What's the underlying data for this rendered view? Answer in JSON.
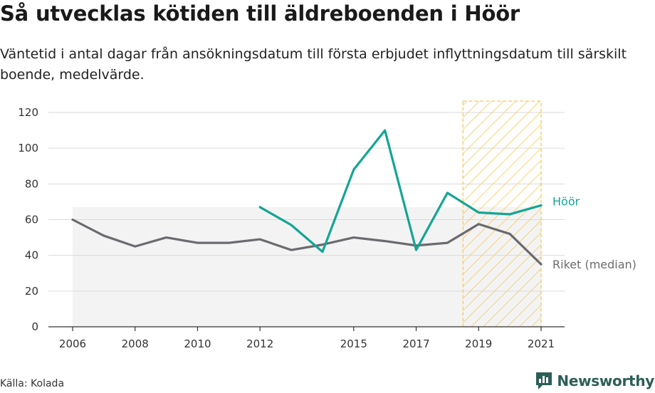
{
  "header": {
    "title": "Så utvecklas kötiden till äldreboenden i Höör",
    "subtitle": "Väntetid i antal dagar från ansökningsdatum till första erbjudet inflyttningsdatum till särskilt boende, medelvärde."
  },
  "footer": {
    "source": "Källa: Kolada",
    "brand": "Newsworthy"
  },
  "colors": {
    "hoor": "#14a595",
    "riket": "#6b6a6f",
    "band": "#efefef",
    "highlight": "#f5c95f",
    "grid": "#dadada",
    "brand": "#2c5e58"
  },
  "chart_data": {
    "type": "line",
    "title": "Så utvecklas kötiden till äldreboenden i Höör",
    "xlabel": "",
    "ylabel": "",
    "ylim": [
      0,
      120
    ],
    "xlim": [
      2006,
      2021
    ],
    "y_ticks": [
      0,
      20,
      40,
      60,
      80,
      100,
      120
    ],
    "x_ticks": [
      "2006",
      "2008",
      "2010",
      "2012",
      "2015",
      "2017",
      "2019",
      "2021"
    ],
    "x_tick_values": [
      2006,
      2008,
      2010,
      2012,
      2015,
      2017,
      2019,
      2021
    ],
    "grid": true,
    "highlight_region": {
      "x_from": 2018.5,
      "x_to": 2021,
      "style": "hatched"
    },
    "band": {
      "x_from": 2006,
      "x_to": 2021,
      "upper": 67
    },
    "series": [
      {
        "name": "Höör",
        "color": "#14a595",
        "x": [
          2012,
          2013,
          2014,
          2015,
          2016,
          2017,
          2018,
          2019,
          2020,
          2021
        ],
        "values": [
          67,
          57,
          42,
          88,
          110,
          43,
          75,
          64,
          63,
          68
        ]
      },
      {
        "name": "Riket (median)",
        "color": "#6b6a6f",
        "x": [
          2006,
          2007,
          2008,
          2009,
          2010,
          2011,
          2012,
          2013,
          2014,
          2015,
          2016,
          2017,
          2018,
          2019,
          2020,
          2021
        ],
        "values": [
          60,
          51,
          45,
          50,
          47,
          47,
          49,
          43,
          46,
          50,
          48,
          45.5,
          47,
          57.5,
          52,
          35
        ]
      }
    ]
  }
}
